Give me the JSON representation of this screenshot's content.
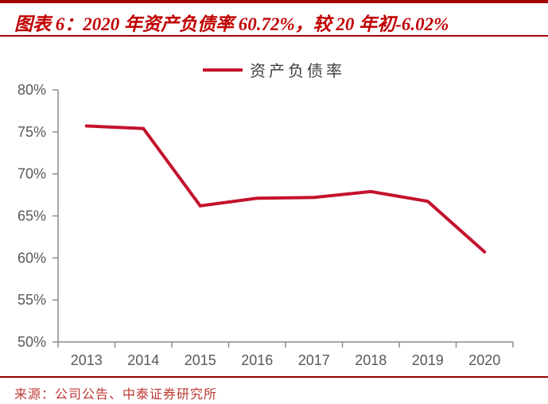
{
  "header": {
    "title": "图表 6：2020 年资产负债率 60.72%，较 20 年初-6.02%"
  },
  "legend": {
    "label": "资产负债率"
  },
  "footer": {
    "source": "来源：公司公告、中泰证券研究所"
  },
  "colors": {
    "line": "#C4122D",
    "title_red": "#C00000",
    "rule_red": "#A30000",
    "bottom_rule_red": "#9A0000",
    "source_red": "#BE3A34",
    "axis_gray": "#8C8C8C",
    "label_gray": "#595959",
    "legend_text": "#3F3F3F"
  },
  "chart_data": {
    "type": "line",
    "title": "图表 6：2020 年资产负债率 60.72%，较 20 年初-6.02%",
    "series": [
      {
        "name": "资产负债率",
        "values": [
          75.7,
          75.4,
          66.2,
          67.1,
          67.2,
          67.9,
          66.74,
          60.72
        ]
      }
    ],
    "categories": [
      "2013",
      "2014",
      "2015",
      "2016",
      "2017",
      "2018",
      "2019",
      "2020"
    ],
    "unit": "%",
    "xlabel": "",
    "ylabel": "",
    "ylim": [
      50,
      80
    ],
    "ytick_step": 5,
    "ytick_labels": [
      "50%",
      "55%",
      "60%",
      "65%",
      "70%",
      "75%",
      "80%"
    ],
    "grid": false,
    "legend_position": "top-center"
  }
}
